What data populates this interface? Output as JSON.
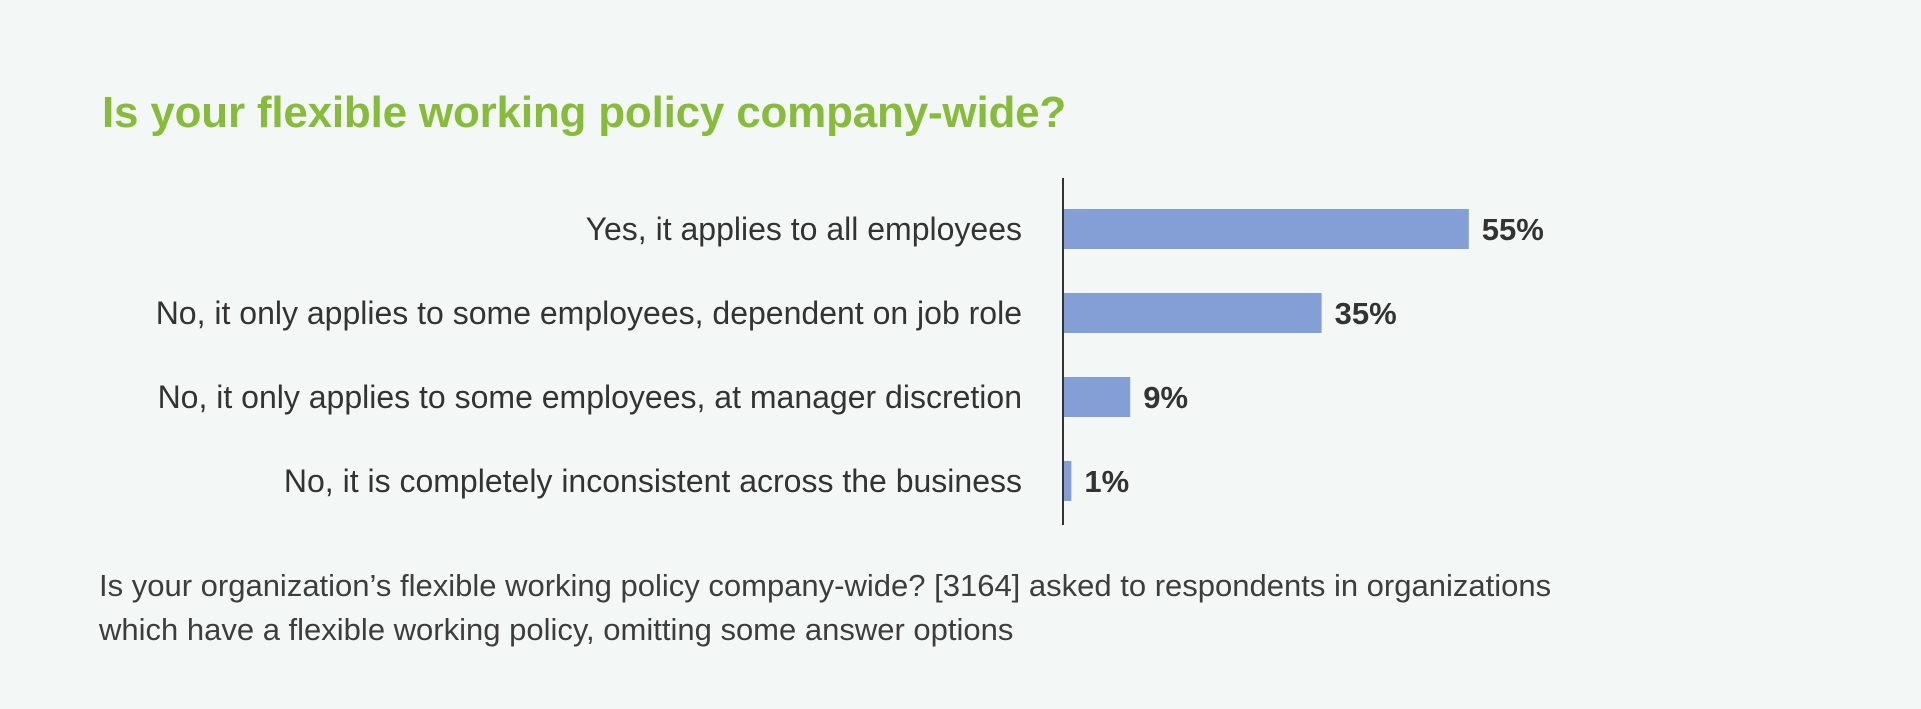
{
  "title": "Is your flexible working policy company-wide?",
  "colors": {
    "title": "#86bc3a",
    "bar": "#849ed6",
    "axis": "#333333",
    "text": "#333333",
    "background": "#f3f8f6"
  },
  "chart_data": {
    "type": "bar",
    "orientation": "horizontal",
    "title": "Is your flexible working policy company-wide?",
    "categories": [
      "Yes, it applies to all employees",
      "No, it only applies to some employees, dependent on job role",
      "No, it only applies to some employees, at manager discretion",
      "No, it is completely inconsistent across the business"
    ],
    "values": [
      55,
      35,
      9,
      1
    ],
    "value_labels": [
      "55%",
      "35%",
      "9%",
      "1%"
    ],
    "unit": "%",
    "xlim": [
      0,
      100
    ],
    "grid": false,
    "legend": "none"
  },
  "footnote": "Is your organization’s flexible working policy company-wide? [3164] asked to respondents in organizations which have a flexible working policy, omitting some answer options"
}
